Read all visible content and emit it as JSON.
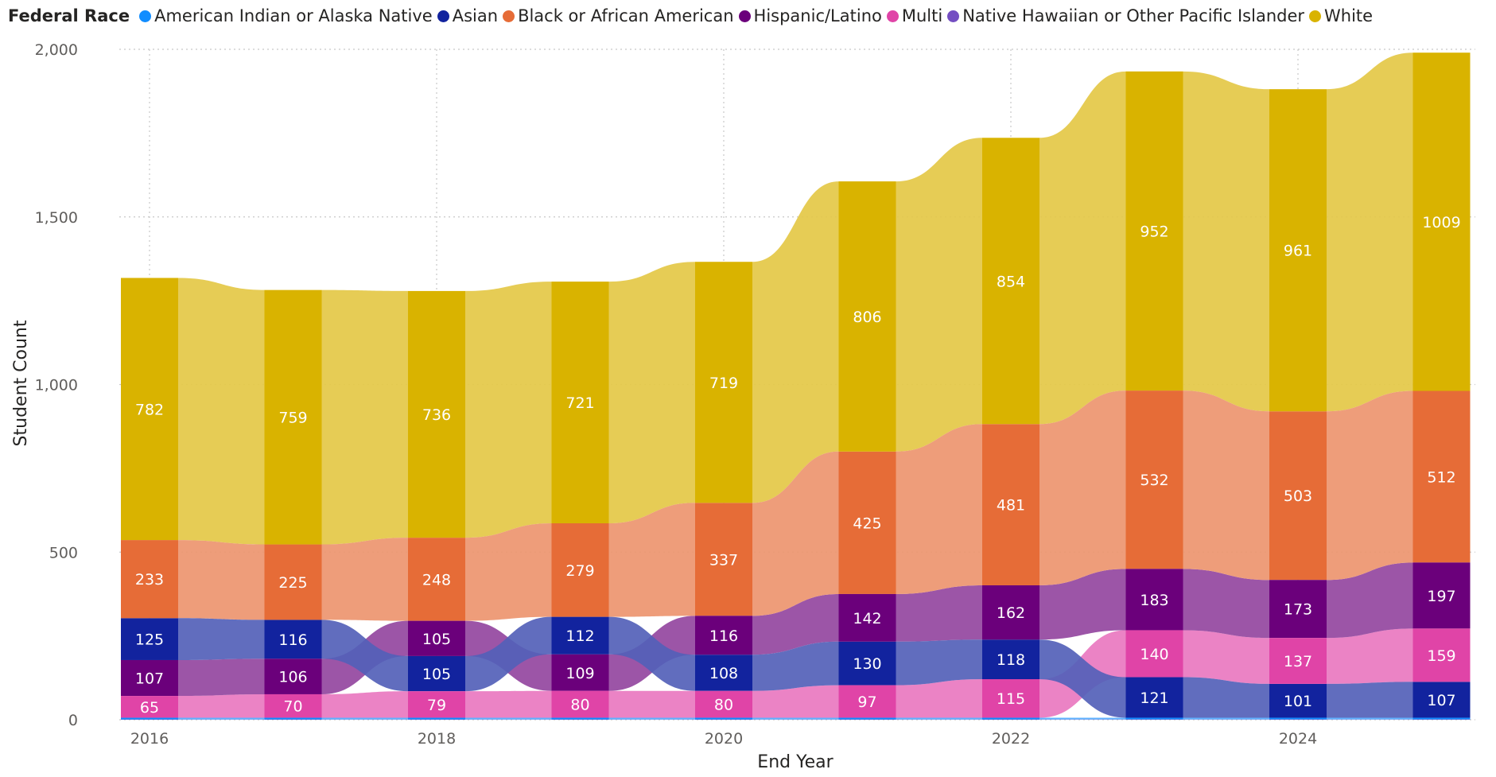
{
  "chart_data": {
    "type": "ribbon",
    "title": "",
    "legend_title": "Federal Race",
    "legend_position": "top-left",
    "xlabel": "End Year",
    "ylabel": "Student Count",
    "ylim": [
      0,
      2000
    ],
    "yticks": [
      0,
      500,
      1000,
      1500,
      2000
    ],
    "ytick_labels": [
      "0",
      "500",
      "1,000",
      "1,500",
      "2,000"
    ],
    "xticks": [
      2016,
      2018,
      2020,
      2022,
      2024
    ],
    "xtick_labels": [
      "2016",
      "2018",
      "2020",
      "2022",
      "2024"
    ],
    "x": [
      2016,
      2017,
      2018,
      2019,
      2020,
      2021,
      2022,
      2023,
      2024,
      2025
    ],
    "grid": true,
    "series": [
      {
        "name": "American Indian or Alaska Native",
        "color": "#118DFF",
        "values": [
          5,
          5,
          5,
          5,
          5,
          5,
          5,
          5,
          5,
          5
        ]
      },
      {
        "name": "Asian",
        "color": "#12239E",
        "values": [
          125,
          116,
          105,
          112,
          108,
          130,
          118,
          121,
          101,
          107
        ]
      },
      {
        "name": "Black or African American",
        "color": "#E66C37",
        "values": [
          233,
          225,
          248,
          279,
          337,
          425,
          481,
          532,
          503,
          512
        ]
      },
      {
        "name": "Hispanic/Latino",
        "color": "#6B007B",
        "values": [
          107,
          106,
          105,
          109,
          116,
          142,
          162,
          183,
          173,
          197
        ]
      },
      {
        "name": "Multi",
        "color": "#E044A7",
        "values": [
          65,
          70,
          79,
          80,
          80,
          97,
          115,
          140,
          137,
          159
        ]
      },
      {
        "name": "Native Hawaiian or Other Pacific Islander",
        "color": "#744EC2",
        "values": [
          1,
          1,
          1,
          1,
          1,
          1,
          1,
          1,
          1,
          1
        ]
      },
      {
        "name": "White",
        "color": "#D9B300",
        "values": [
          782,
          759,
          736,
          721,
          719,
          806,
          854,
          952,
          961,
          1009
        ]
      }
    ],
    "labeled_series": [
      "Asian",
      "Black or African American",
      "Hispanic/Latino",
      "Multi",
      "White"
    ]
  }
}
